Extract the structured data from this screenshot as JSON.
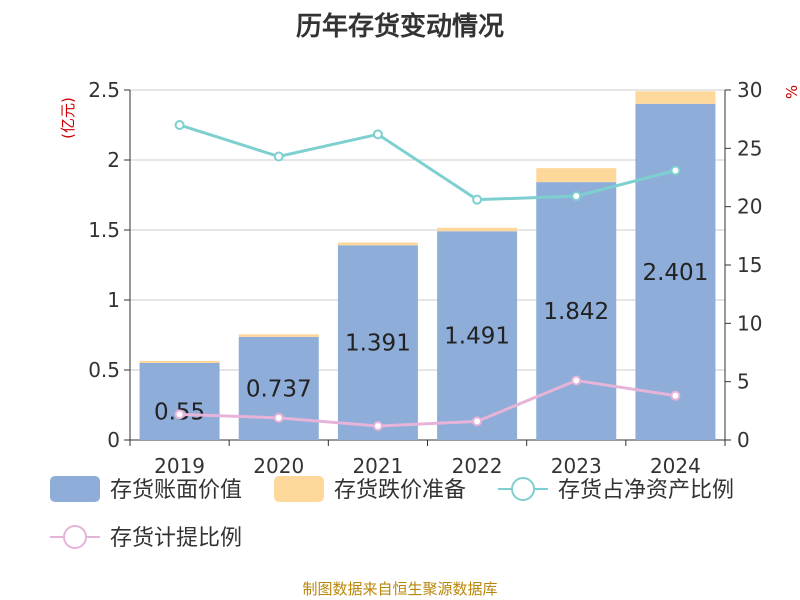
{
  "title": "历年存货变动情况",
  "source": "制图数据来自恒生聚源数据库",
  "chart_data": {
    "type": "bar",
    "categories": [
      "2019",
      "2020",
      "2021",
      "2022",
      "2023",
      "2024"
    ],
    "y_left": {
      "label": "(亿元)",
      "range": [
        0,
        2.5
      ],
      "ticks": [
        "0",
        "0.5",
        "1",
        "1.5",
        "2",
        "2.5"
      ]
    },
    "y_right": {
      "label": "%",
      "range": [
        0,
        30
      ],
      "ticks": [
        "0",
        "5",
        "10",
        "15",
        "20",
        "25",
        "30"
      ]
    },
    "stacked_bars": [
      {
        "name": "存货账面价值",
        "color": "#8eadd9",
        "values": [
          0.55,
          0.737,
          1.391,
          1.491,
          1.842,
          2.401
        ],
        "labels": [
          "0.55",
          "0.737",
          "1.391",
          "1.491",
          "1.842",
          "2.401"
        ]
      },
      {
        "name": "存货跌价准备",
        "color": "#fdd89a",
        "values": [
          0.015,
          0.018,
          0.02,
          0.025,
          0.1,
          0.09
        ]
      }
    ],
    "lines": [
      {
        "name": "存货占净资产比例",
        "color": "#7ecfcf",
        "axis": "right",
        "values": [
          27.0,
          24.3,
          26.2,
          20.6,
          20.9,
          23.1
        ]
      },
      {
        "name": "存货计提比例",
        "color": "#e6b3d9",
        "axis": "right",
        "values": [
          2.2,
          1.9,
          1.2,
          1.6,
          5.1,
          3.8
        ]
      }
    ],
    "legend_position": "bottom",
    "grid": true
  }
}
